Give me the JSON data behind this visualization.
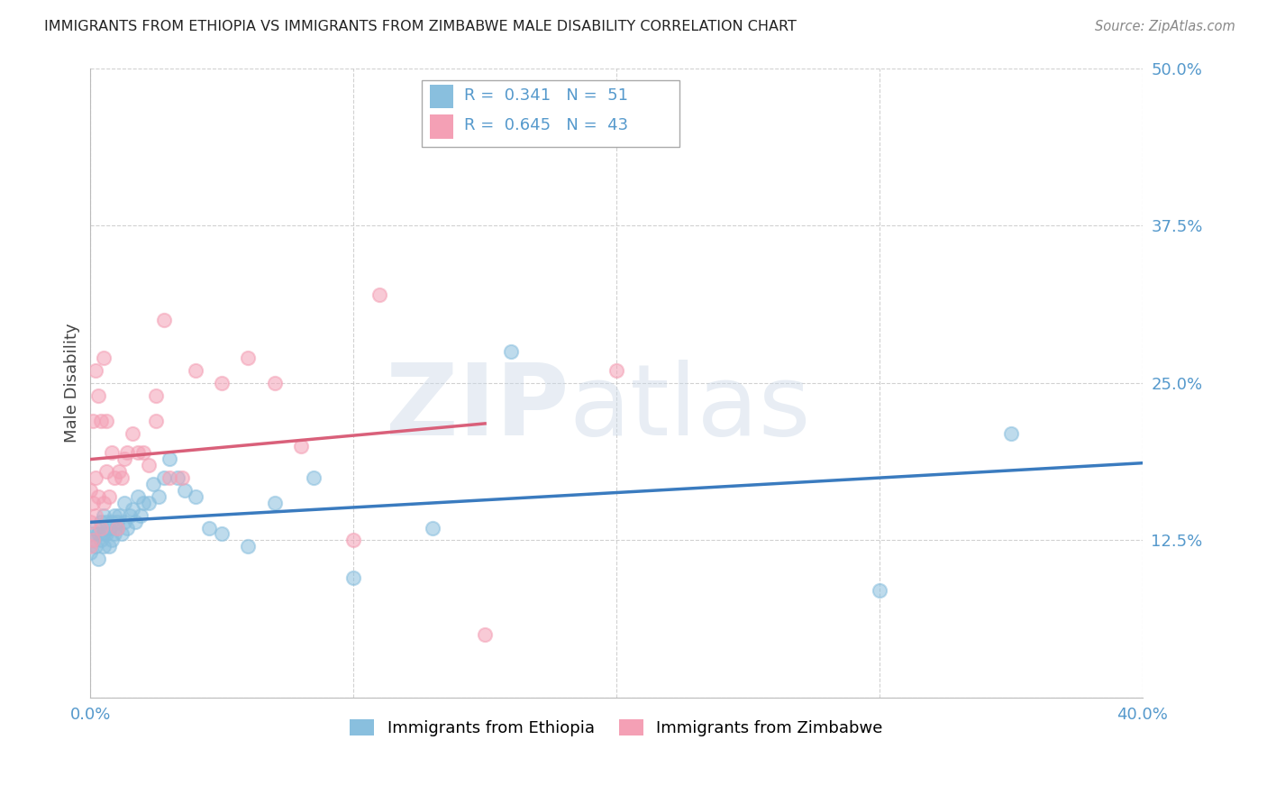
{
  "title": "IMMIGRANTS FROM ETHIOPIA VS IMMIGRANTS FROM ZIMBABWE MALE DISABILITY CORRELATION CHART",
  "source": "Source: ZipAtlas.com",
  "ylabel": "Male Disability",
  "xlim": [
    0.0,
    0.4
  ],
  "ylim": [
    0.0,
    0.5
  ],
  "yticks": [
    0.0,
    0.125,
    0.25,
    0.375,
    0.5
  ],
  "ytick_labels": [
    "",
    "12.5%",
    "25.0%",
    "37.5%",
    "50.0%"
  ],
  "xticks": [
    0.0,
    0.1,
    0.2,
    0.3,
    0.4
  ],
  "xtick_labels": [
    "0.0%",
    "",
    "",
    "",
    "40.0%"
  ],
  "ethiopia_R": 0.341,
  "ethiopia_N": 51,
  "zimbabwe_R": 0.645,
  "zimbabwe_N": 43,
  "ethiopia_color": "#89bfde",
  "zimbabwe_color": "#f4a0b5",
  "ethiopia_line_color": "#3a7bbf",
  "zimbabwe_line_color": "#d9607a",
  "background_color": "#ffffff",
  "grid_color": "#cccccc",
  "title_color": "#222222",
  "axis_label_color": "#444444",
  "tick_label_color": "#5599cc",
  "ethiopia_x": [
    0.0,
    0.001,
    0.001,
    0.002,
    0.002,
    0.003,
    0.003,
    0.004,
    0.004,
    0.005,
    0.005,
    0.005,
    0.006,
    0.006,
    0.007,
    0.007,
    0.008,
    0.008,
    0.009,
    0.009,
    0.01,
    0.01,
    0.011,
    0.012,
    0.013,
    0.013,
    0.014,
    0.015,
    0.016,
    0.017,
    0.018,
    0.019,
    0.02,
    0.022,
    0.024,
    0.026,
    0.028,
    0.03,
    0.033,
    0.036,
    0.04,
    0.045,
    0.05,
    0.06,
    0.07,
    0.085,
    0.1,
    0.13,
    0.16,
    0.3,
    0.35
  ],
  "ethiopia_y": [
    0.115,
    0.125,
    0.13,
    0.12,
    0.135,
    0.11,
    0.13,
    0.125,
    0.14,
    0.12,
    0.13,
    0.145,
    0.13,
    0.14,
    0.12,
    0.135,
    0.125,
    0.14,
    0.13,
    0.145,
    0.14,
    0.135,
    0.145,
    0.13,
    0.14,
    0.155,
    0.135,
    0.145,
    0.15,
    0.14,
    0.16,
    0.145,
    0.155,
    0.155,
    0.17,
    0.16,
    0.175,
    0.19,
    0.175,
    0.165,
    0.16,
    0.135,
    0.13,
    0.12,
    0.155,
    0.175,
    0.095,
    0.135,
    0.275,
    0.085,
    0.21
  ],
  "zimbabwe_x": [
    0.0,
    0.0,
    0.0,
    0.001,
    0.001,
    0.001,
    0.002,
    0.002,
    0.002,
    0.003,
    0.003,
    0.004,
    0.004,
    0.005,
    0.005,
    0.006,
    0.006,
    0.007,
    0.008,
    0.009,
    0.01,
    0.011,
    0.012,
    0.013,
    0.014,
    0.016,
    0.018,
    0.02,
    0.022,
    0.025,
    0.028,
    0.03,
    0.035,
    0.04,
    0.05,
    0.06,
    0.07,
    0.08,
    0.1,
    0.11,
    0.15,
    0.2,
    0.025
  ],
  "zimbabwe_y": [
    0.12,
    0.14,
    0.165,
    0.125,
    0.155,
    0.22,
    0.145,
    0.175,
    0.26,
    0.16,
    0.24,
    0.135,
    0.22,
    0.155,
    0.27,
    0.18,
    0.22,
    0.16,
    0.195,
    0.175,
    0.135,
    0.18,
    0.175,
    0.19,
    0.195,
    0.21,
    0.195,
    0.195,
    0.185,
    0.22,
    0.3,
    0.175,
    0.175,
    0.26,
    0.25,
    0.27,
    0.25,
    0.2,
    0.125,
    0.32,
    0.05,
    0.26,
    0.24
  ]
}
